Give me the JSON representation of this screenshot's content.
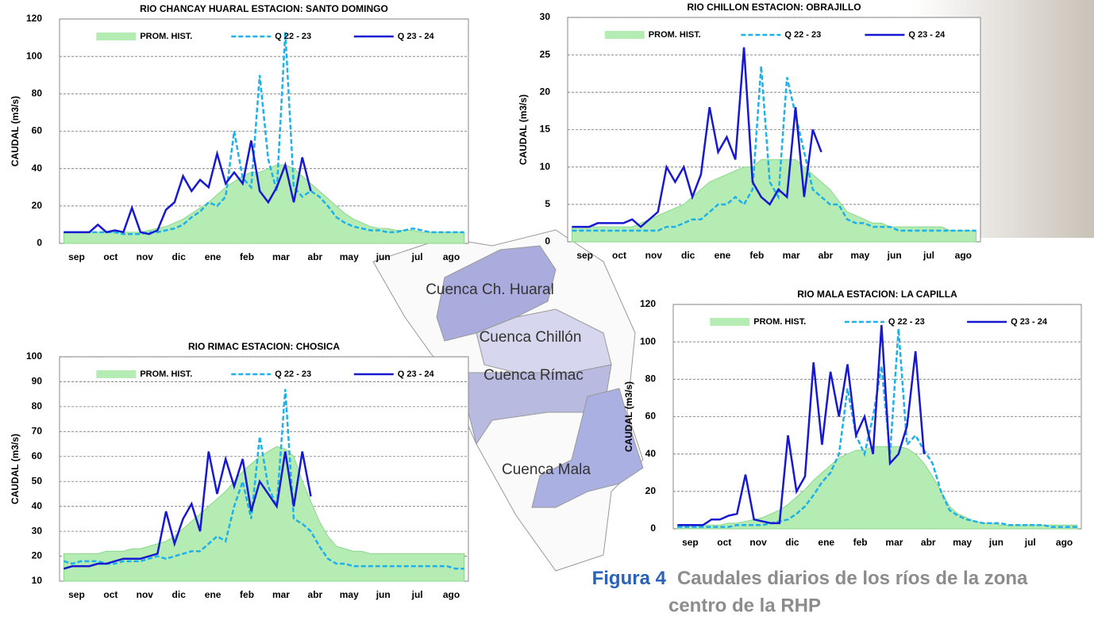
{
  "chart_data": [
    {
      "type": "line",
      "title": "RIO CHANCAY HUARAL ESTACION:  SANTO DOMINGO",
      "ylabel": "CAUDAL (m3/s)",
      "categories": [
        "sep",
        null,
        null,
        null,
        "oct",
        null,
        null,
        null,
        "nov",
        null,
        null,
        null,
        "dic",
        null,
        null,
        null,
        "ene",
        null,
        null,
        null,
        "feb",
        null,
        null,
        null,
        "mar",
        null,
        null,
        null,
        "abr",
        null,
        null,
        null,
        "may",
        null,
        null,
        null,
        "jun",
        null,
        null,
        null,
        "jul",
        null,
        null,
        null,
        "ago",
        null,
        null,
        null
      ],
      "ylim": [
        0,
        120
      ],
      "yticks": [
        0,
        20,
        40,
        60,
        80,
        100,
        120
      ],
      "grid": true,
      "series": [
        {
          "name": "PROM. HIST.",
          "color": "#b4ecb4",
          "style": "area",
          "values": [
            6,
            6,
            6,
            6,
            6,
            6,
            6,
            6,
            6,
            6,
            7,
            8,
            9,
            11,
            13,
            16,
            19,
            22,
            26,
            30,
            33,
            36,
            38,
            38,
            40,
            42,
            42,
            40,
            36,
            32,
            28,
            24,
            20,
            16,
            13,
            11,
            9,
            8,
            8,
            7,
            7,
            7,
            6,
            6,
            6,
            6,
            6,
            6
          ]
        },
        {
          "name": "Q 22 - 23",
          "color": "#1eb0e8",
          "style": "dashed",
          "values": [
            6,
            6,
            6,
            6,
            6,
            6,
            6,
            5,
            5,
            5,
            6,
            6,
            7,
            8,
            10,
            14,
            17,
            22,
            20,
            25,
            60,
            35,
            30,
            90,
            45,
            28,
            113,
            30,
            25,
            28,
            25,
            20,
            14,
            11,
            9,
            8,
            7,
            7,
            6,
            6,
            7,
            8,
            7,
            6,
            6,
            6,
            6,
            6
          ]
        },
        {
          "name": "Q 23 - 24",
          "color": "#1818d0",
          "style": "solid",
          "values": [
            6,
            6,
            6,
            6,
            10,
            6,
            7,
            6,
            19,
            6,
            5,
            7,
            18,
            22,
            36,
            28,
            34,
            30,
            48,
            32,
            38,
            32,
            55,
            28,
            22,
            30,
            42,
            22,
            46,
            28,
            null,
            null,
            null,
            null,
            null,
            null,
            null,
            null,
            null,
            null,
            null,
            null,
            null,
            null,
            null,
            null,
            null,
            null
          ]
        }
      ]
    },
    {
      "type": "line",
      "title": "RIO CHILLON ESTACION:  OBRAJILLO",
      "ylabel": "CAUDAL (m3/s)",
      "categories": [
        "sep",
        null,
        null,
        null,
        "oct",
        null,
        null,
        null,
        "nov",
        null,
        null,
        null,
        "dic",
        null,
        null,
        null,
        "ene",
        null,
        null,
        null,
        "feb",
        null,
        null,
        null,
        "mar",
        null,
        null,
        null,
        "abr",
        null,
        null,
        null,
        "may",
        null,
        null,
        null,
        "jun",
        null,
        null,
        null,
        "jul",
        null,
        null,
        null,
        "ago",
        null,
        null,
        null
      ],
      "ylim": [
        0,
        30
      ],
      "yticks": [
        0,
        5,
        10,
        15,
        20,
        25,
        30
      ],
      "grid": true,
      "series": [
        {
          "name": "PROM. HIST.",
          "color": "#b4ecb4",
          "style": "area",
          "values": [
            2,
            2,
            2,
            2,
            2,
            2,
            2,
            2,
            2.5,
            3,
            3.5,
            4,
            4.5,
            5,
            6,
            7,
            8,
            8.5,
            9,
            9.5,
            10,
            10,
            11,
            11,
            11,
            11,
            11,
            10,
            9,
            8,
            7,
            5.5,
            4,
            3.5,
            3,
            2.5,
            2.5,
            2,
            2,
            2,
            2,
            2,
            2,
            2,
            1.5,
            1.5,
            1.5,
            1.5
          ]
        },
        {
          "name": "Q 22 - 23",
          "color": "#1eb0e8",
          "style": "dashed",
          "values": [
            1.5,
            1.5,
            1.5,
            1.5,
            1.5,
            1.5,
            1.5,
            1.5,
            1.5,
            1.5,
            1.5,
            2,
            2,
            2.5,
            3,
            3,
            4,
            5,
            5,
            6,
            5,
            7,
            23.5,
            8,
            6,
            22,
            17,
            12,
            7,
            6,
            5,
            5,
            3,
            2.5,
            2.5,
            2,
            2,
            2,
            1.5,
            1.5,
            1.5,
            1.5,
            1.5,
            1.5,
            1.5,
            1.5,
            1.5,
            1.5
          ]
        },
        {
          "name": "Q 23 - 24",
          "color": "#1818d0",
          "style": "solid",
          "values": [
            2,
            2,
            2,
            2.5,
            2.5,
            2.5,
            2.5,
            3,
            2,
            3,
            4,
            10,
            8,
            10,
            6,
            9,
            18,
            12,
            14,
            11,
            26,
            8,
            6,
            5,
            7,
            6,
            18,
            6,
            15,
            12,
            null,
            null,
            null,
            null,
            null,
            null,
            null,
            null,
            null,
            null,
            null,
            null,
            null,
            null,
            null,
            null,
            null,
            null
          ]
        }
      ]
    },
    {
      "type": "line",
      "title": "RIO RIMAC ESTACION:  CHOSICA",
      "ylabel": "CAUDAL (m3/s)",
      "categories": [
        "sep",
        null,
        null,
        null,
        "oct",
        null,
        null,
        null,
        "nov",
        null,
        null,
        null,
        "dic",
        null,
        null,
        null,
        "ene",
        null,
        null,
        null,
        "feb",
        null,
        null,
        null,
        "mar",
        null,
        null,
        null,
        "abr",
        null,
        null,
        null,
        "may",
        null,
        null,
        null,
        "jun",
        null,
        null,
        null,
        "jul",
        null,
        null,
        null,
        "ago",
        null,
        null,
        null
      ],
      "ylim": [
        10,
        100
      ],
      "yticks": [
        10,
        20,
        30,
        40,
        50,
        60,
        70,
        80,
        90,
        100
      ],
      "grid": true,
      "series": [
        {
          "name": "PROM. HIST.",
          "color": "#b4ecb4",
          "style": "area",
          "values": [
            21,
            21,
            21,
            21,
            21,
            22,
            22,
            22,
            23,
            23,
            24,
            25,
            26,
            28,
            31,
            34,
            37,
            40,
            43,
            46,
            50,
            54,
            57,
            60,
            62,
            64,
            63,
            60,
            50,
            42,
            34,
            28,
            24,
            23,
            22,
            22,
            21,
            21,
            21,
            21,
            21,
            21,
            21,
            21,
            21,
            21,
            21,
            21
          ]
        },
        {
          "name": "Q 22 - 23",
          "color": "#1eb0e8",
          "style": "dashed",
          "values": [
            18,
            17,
            18,
            18,
            18,
            17,
            17,
            18,
            18,
            18,
            19,
            20,
            19,
            20,
            21,
            22,
            22,
            25,
            28,
            26,
            40,
            50,
            35,
            68,
            48,
            40,
            87,
            35,
            33,
            30,
            24,
            19,
            17,
            17,
            16,
            16,
            16,
            16,
            16,
            16,
            16,
            16,
            16,
            16,
            16,
            16,
            15,
            15
          ]
        },
        {
          "name": "Q 23 - 24",
          "color": "#1818d0",
          "style": "solid",
          "values": [
            15,
            16,
            16,
            16,
            17,
            17,
            18,
            19,
            19,
            19,
            20,
            21,
            38,
            25,
            35,
            41,
            30,
            62,
            45,
            59,
            48,
            59,
            38,
            50,
            45,
            40,
            62,
            40,
            62,
            44,
            null,
            null,
            null,
            null,
            null,
            null,
            null,
            null,
            null,
            null,
            null,
            null,
            null,
            null,
            null,
            null,
            null,
            null
          ]
        }
      ]
    },
    {
      "type": "line",
      "title": "RIO MALA ESTACION: LA CAPILLA",
      "ylabel": "CAUDAL (m3/s)",
      "categories": [
        "sep",
        null,
        null,
        null,
        "oct",
        null,
        null,
        null,
        "nov",
        null,
        null,
        null,
        "dic",
        null,
        null,
        null,
        "ene",
        null,
        null,
        null,
        "feb",
        null,
        null,
        null,
        "mar",
        null,
        null,
        null,
        "abr",
        null,
        null,
        null,
        "may",
        null,
        null,
        null,
        "jun",
        null,
        null,
        null,
        "jul",
        null,
        null,
        null,
        "ago",
        null,
        null,
        null
      ],
      "ylim": [
        0,
        120
      ],
      "yticks": [
        0,
        20,
        40,
        60,
        80,
        100,
        120
      ],
      "grid": true,
      "series": [
        {
          "name": "PROM. HIST.",
          "color": "#b4ecb4",
          "style": "area",
          "values": [
            2,
            2,
            2,
            2,
            2,
            2,
            3,
            3,
            4,
            5,
            6,
            8,
            10,
            13,
            17,
            21,
            26,
            30,
            34,
            38,
            40,
            42,
            42,
            44,
            44,
            44,
            44,
            43,
            40,
            35,
            28,
            20,
            12,
            8,
            6,
            4,
            3,
            3,
            2,
            2,
            2,
            2,
            2,
            2,
            2,
            2,
            2,
            2
          ]
        },
        {
          "name": "Q 22 - 23",
          "color": "#1eb0e8",
          "style": "dashed",
          "values": [
            1,
            1,
            1,
            1,
            1,
            1,
            1,
            2,
            2,
            2,
            2,
            3,
            4,
            5,
            8,
            12,
            18,
            25,
            30,
            40,
            75,
            50,
            40,
            60,
            87,
            40,
            107,
            45,
            50,
            42,
            35,
            20,
            10,
            7,
            5,
            4,
            3,
            3,
            3,
            2,
            2,
            2,
            2,
            2,
            1,
            1,
            1,
            1
          ]
        },
        {
          "name": "Q 23 - 24",
          "color": "#1818d0",
          "style": "solid",
          "values": [
            2,
            2,
            2,
            2,
            5,
            5,
            7,
            8,
            29,
            5,
            4,
            3,
            3,
            50,
            20,
            28,
            89,
            45,
            84,
            60,
            88,
            50,
            60,
            40,
            109,
            35,
            40,
            55,
            95,
            40,
            null,
            null,
            null,
            null,
            null,
            null,
            null,
            null,
            null,
            null,
            null,
            null,
            null,
            null,
            null,
            null,
            null,
            null
          ]
        }
      ]
    }
  ],
  "map_labels": [
    "Cuenca Ch. Huaral",
    "Cuenca Chillón",
    "Cuenca Rímac",
    "Cuenca Mala"
  ],
  "caption": {
    "figure": "Figura 4",
    "line1": "Caudales diarios de los ríos de la zona",
    "line2": "centro de la RHP"
  }
}
